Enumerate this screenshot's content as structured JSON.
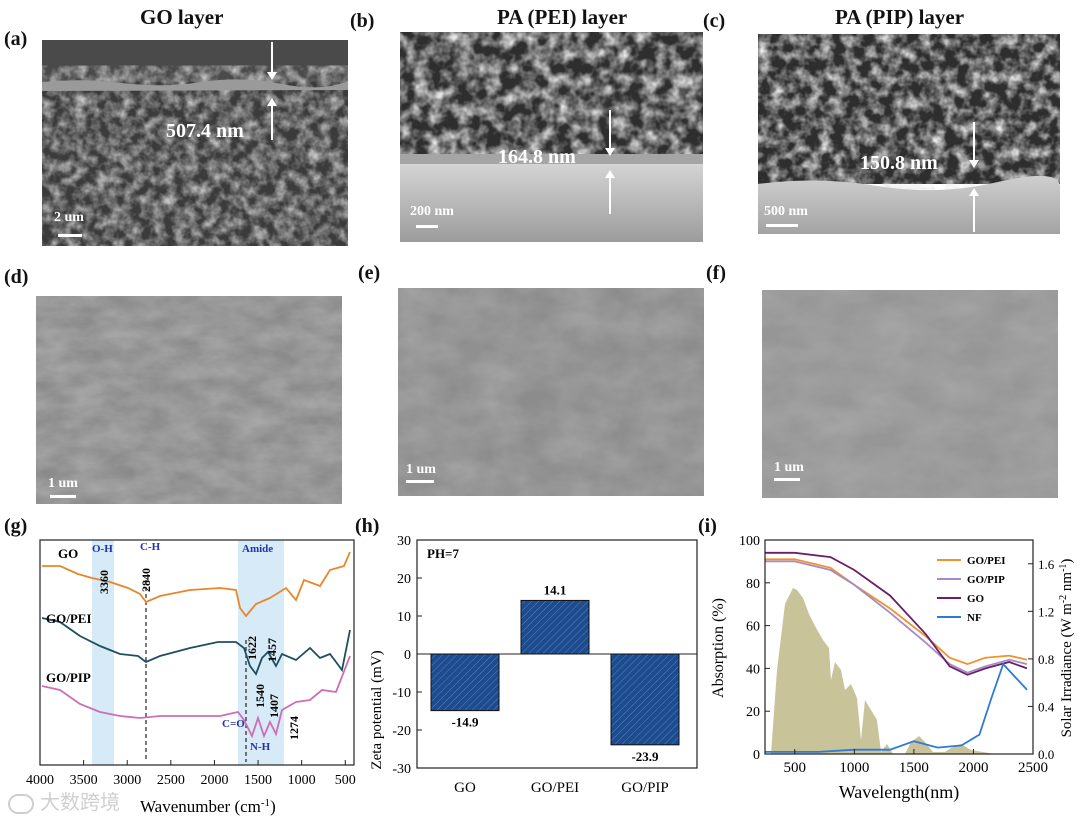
{
  "titles": {
    "a": "GO layer",
    "b": "PA (PEI) layer",
    "c": "PA (PIP) layer"
  },
  "panel_labels": [
    "(a)",
    "(b)",
    "(c)",
    "(d)",
    "(e)",
    "(f)",
    "(g)",
    "(h)",
    "(i)"
  ],
  "sem": {
    "a": {
      "thickness": "507.4 nm",
      "scale": "2 um"
    },
    "b": {
      "thickness": "164.8 nm",
      "scale": "200 nm"
    },
    "c": {
      "thickness": "150.8 nm",
      "scale": "500 nm"
    },
    "d": {
      "scale": "1 um"
    },
    "e": {
      "scale": "1 um"
    },
    "f": {
      "scale": "1 um"
    }
  },
  "watermark": "大数跨境",
  "chart_data": [
    {
      "panel": "g",
      "type": "line",
      "xlabel": "Wavenumber (cm-1)",
      "x_ticks": [
        4000,
        3500,
        3000,
        2500,
        2000,
        1500,
        1000,
        500
      ],
      "xlim": [
        4000,
        400
      ],
      "series": [
        {
          "name": "GO",
          "color": "#e8872a"
        },
        {
          "name": "GO/PEI",
          "color": "#1f4e5f"
        },
        {
          "name": "GO/PIP",
          "color": "#cc6fb5"
        }
      ],
      "band_labels": [
        "O-H",
        "C-H",
        "Amide"
      ],
      "peak_labels": [
        "3360",
        "2840",
        "1622",
        "1457",
        "1540",
        "1407",
        "1274",
        "C=O",
        "N-H"
      ]
    },
    {
      "panel": "h",
      "type": "bar",
      "categories": [
        "GO",
        "GO/PEI",
        "GO/PIP"
      ],
      "values": [
        -14.9,
        14.1,
        -23.9
      ],
      "value_labels": [
        "-14.9",
        "14.1",
        "-23.9"
      ],
      "ylabel": "Zeta potential (mV)",
      "ylim": [
        -30,
        30
      ],
      "y_ticks": [
        30,
        20,
        10,
        0,
        -10,
        -20,
        -30
      ],
      "annotation": "PH=7",
      "bar_color": "#1c4b8e"
    },
    {
      "panel": "i",
      "type": "line",
      "xlabel": "Wavelength(nm)",
      "ylabel": "Absorption (%)",
      "y2label": "Solar Irradiance (W m-2 nm-1)",
      "x_ticks": [
        500,
        1000,
        1500,
        2000,
        2500
      ],
      "xlim": [
        250,
        2500
      ],
      "y_ticks": [
        0,
        20,
        40,
        60,
        80,
        100
      ],
      "ylim": [
        0,
        100
      ],
      "y2_ticks": [
        "0.0",
        "0.4",
        "0.8",
        "1.2",
        "1.6"
      ],
      "y2lim": [
        0,
        1.8
      ],
      "legend": "top-right",
      "series": [
        {
          "name": "GO/PEI",
          "color": "#f0922b",
          "x": [
            250,
            500,
            800,
            1000,
            1300,
            1600,
            1800,
            1950,
            2100,
            2300,
            2450
          ],
          "y": [
            91,
            91,
            87,
            79,
            68,
            55,
            45,
            42,
            45,
            46,
            44
          ]
        },
        {
          "name": "GO/PIP",
          "color": "#a48ac8",
          "x": [
            250,
            500,
            800,
            1000,
            1300,
            1600,
            1800,
            1950,
            2100,
            2300,
            2450
          ],
          "y": [
            90,
            90,
            86,
            79,
            66,
            52,
            42,
            38,
            41,
            44,
            42
          ]
        },
        {
          "name": "GO",
          "color": "#6a1f6a",
          "x": [
            250,
            500,
            800,
            1000,
            1300,
            1600,
            1800,
            1950,
            2100,
            2300,
            2450
          ],
          "y": [
            94,
            94,
            92,
            86,
            74,
            56,
            41,
            37,
            40,
            43,
            40
          ]
        },
        {
          "name": "NF",
          "color": "#2f7ad6",
          "x": [
            250,
            700,
            1000,
            1300,
            1500,
            1700,
            1900,
            2050,
            2150,
            2250,
            2350,
            2450
          ],
          "y": [
            1,
            1,
            2,
            2,
            6,
            3,
            4,
            9,
            26,
            42,
            36,
            30
          ]
        }
      ]
    }
  ]
}
